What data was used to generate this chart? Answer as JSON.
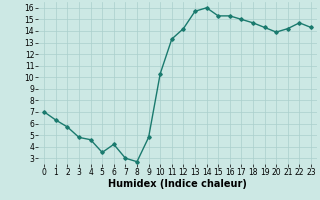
{
  "x": [
    0,
    1,
    2,
    3,
    4,
    5,
    6,
    7,
    8,
    9,
    10,
    11,
    12,
    13,
    14,
    15,
    16,
    17,
    18,
    19,
    20,
    21,
    22,
    23
  ],
  "y": [
    7.0,
    6.3,
    5.7,
    4.8,
    4.6,
    3.5,
    4.2,
    3.0,
    2.7,
    4.8,
    10.3,
    13.3,
    14.2,
    15.7,
    16.0,
    15.3,
    15.3,
    15.0,
    14.7,
    14.3,
    13.9,
    14.2,
    14.7,
    14.3
  ],
  "line_color": "#1a7a6e",
  "marker": "D",
  "marker_size": 1.8,
  "bg_color": "#cce8e4",
  "grid_color": "#aacfcc",
  "xlabel": "Humidex (Indice chaleur)",
  "xlim": [
    -0.5,
    23.5
  ],
  "ylim": [
    2.5,
    16.5
  ],
  "yticks": [
    3,
    4,
    5,
    6,
    7,
    8,
    9,
    10,
    11,
    12,
    13,
    14,
    15,
    16
  ],
  "xticks": [
    0,
    1,
    2,
    3,
    4,
    5,
    6,
    7,
    8,
    9,
    10,
    11,
    12,
    13,
    14,
    15,
    16,
    17,
    18,
    19,
    20,
    21,
    22,
    23
  ],
  "tick_fontsize": 5.5,
  "xlabel_fontsize": 7,
  "linewidth": 1.0
}
